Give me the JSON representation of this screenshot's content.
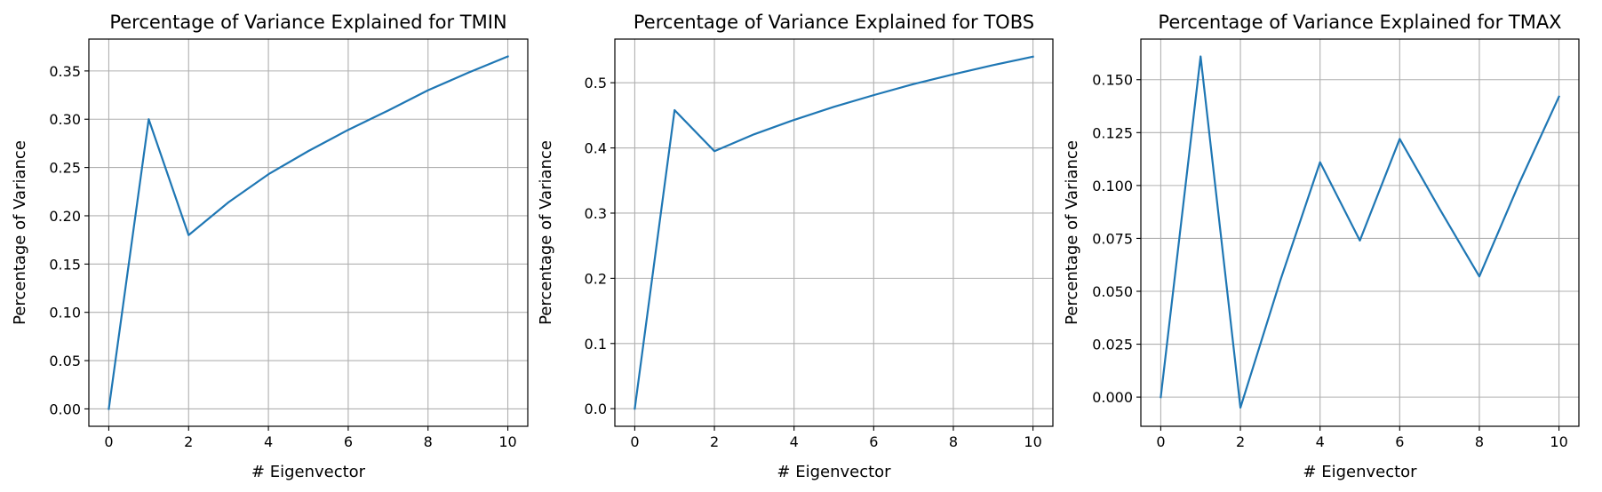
{
  "chart_data": [
    {
      "type": "line",
      "title": "Percentage of Variance Explained for TMIN",
      "xlabel": "# Eigenvector",
      "ylabel": "Percentage of Variance",
      "xlim": [
        -0.5,
        10.5
      ],
      "ylim": [
        -0.018,
        0.383
      ],
      "xticks": [
        0,
        2,
        4,
        6,
        8,
        10
      ],
      "xtick_labels": [
        "0",
        "2",
        "4",
        "6",
        "8",
        "10"
      ],
      "yticks": [
        0.0,
        0.05,
        0.1,
        0.15,
        0.2,
        0.25,
        0.3,
        0.35
      ],
      "ytick_labels": [
        "0.00",
        "0.05",
        "0.10",
        "0.15",
        "0.20",
        "0.25",
        "0.30",
        "0.35"
      ],
      "grid": true,
      "series": [
        {
          "color": "#1f77b4",
          "x": [
            0,
            1,
            2,
            3,
            4,
            5,
            6,
            7,
            8,
            9,
            10
          ],
          "y": [
            0.0,
            0.3,
            0.18,
            0.214,
            0.243,
            0.267,
            0.289,
            0.309,
            0.33,
            0.348,
            0.365
          ]
        }
      ]
    },
    {
      "type": "line",
      "title": "Percentage of Variance Explained for TOBS",
      "xlabel": "# Eigenvector",
      "ylabel": "Percentage of Variance",
      "xlim": [
        -0.5,
        10.5
      ],
      "ylim": [
        -0.027,
        0.567
      ],
      "xticks": [
        0,
        2,
        4,
        6,
        8,
        10
      ],
      "xtick_labels": [
        "0",
        "2",
        "4",
        "6",
        "8",
        "10"
      ],
      "yticks": [
        0.0,
        0.1,
        0.2,
        0.3,
        0.4,
        0.5
      ],
      "ytick_labels": [
        "0.0",
        "0.1",
        "0.2",
        "0.3",
        "0.4",
        "0.5"
      ],
      "grid": true,
      "series": [
        {
          "color": "#1f77b4",
          "x": [
            0,
            1,
            2,
            3,
            4,
            5,
            6,
            7,
            8,
            9,
            10
          ],
          "y": [
            0.0,
            0.458,
            0.395,
            0.421,
            0.443,
            0.463,
            0.481,
            0.498,
            0.513,
            0.527,
            0.54
          ]
        }
      ]
    },
    {
      "type": "line",
      "title": "Percentage of Variance Explained for TMAX",
      "xlabel": "# Eigenvector",
      "ylabel": "Percentage of Variance",
      "xlim": [
        -0.5,
        10.5
      ],
      "ylim": [
        -0.0138,
        0.1692
      ],
      "xticks": [
        0,
        2,
        4,
        6,
        8,
        10
      ],
      "xtick_labels": [
        "0",
        "2",
        "4",
        "6",
        "8",
        "10"
      ],
      "yticks": [
        0.0,
        0.025,
        0.05,
        0.075,
        0.1,
        0.125,
        0.15
      ],
      "ytick_labels": [
        "0.000",
        "0.025",
        "0.050",
        "0.075",
        "0.100",
        "0.125",
        "0.150"
      ],
      "grid": true,
      "series": [
        {
          "color": "#1f77b4",
          "x": [
            0,
            1,
            2,
            3,
            4,
            5,
            6,
            7,
            8,
            9,
            10
          ],
          "y": [
            0.0,
            0.161,
            -0.005,
            0.055,
            0.111,
            0.074,
            0.122,
            0.089,
            0.057,
            0.101,
            0.142
          ]
        }
      ]
    }
  ]
}
